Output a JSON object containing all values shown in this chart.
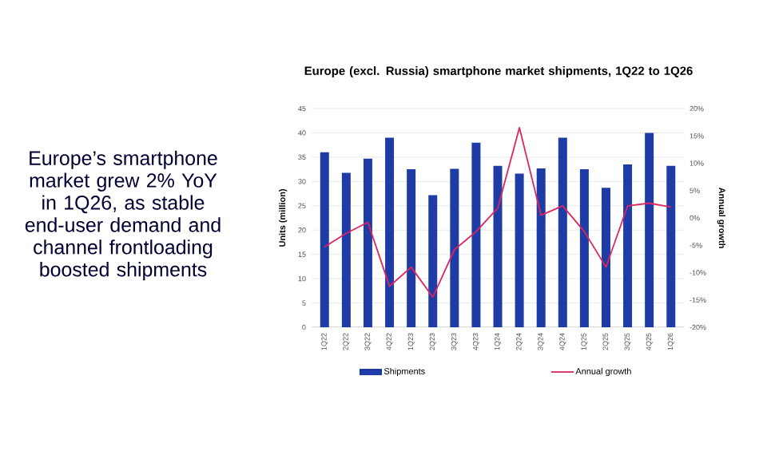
{
  "chart_data": {
    "type": "bar",
    "title": "Europe (excl. Russia) smartphone market shipments, 1Q22 to 1Q26",
    "ylabel": "Units (million)",
    "y2label": "Annual growth",
    "annotations": [
      "Europe’s smartphone market grew 2% YoY in 1Q26, as stable end-user demand and channel frontloading boosted shipments"
    ],
    "categories": [
      "1Q22",
      "2Q22",
      "3Q22",
      "4Q22",
      "1Q23",
      "2Q23",
      "3Q23",
      "4Q23",
      "1Q24",
      "2Q24",
      "3Q24",
      "4Q24",
      "1Q25",
      "2Q25",
      "3Q25",
      "4Q25",
      "1Q26"
    ],
    "series": [
      {
        "name": "Shipments",
        "color": "#1f3ca6",
        "values": [
          36,
          31.8,
          34.7,
          39,
          32.5,
          27.2,
          32.6,
          38,
          33.2,
          31.6,
          32.7,
          39,
          32.5,
          28.7,
          33.5,
          40,
          33.2
        ]
      },
      {
        "name": "Annual growth",
        "type": "line",
        "axis": "y2",
        "color": "#e0245e",
        "values": [
          -5.3,
          -2.8,
          -0.8,
          -12.5,
          -9,
          -14.5,
          -5.8,
          -2.5,
          1.8,
          16.5,
          0.5,
          2.2,
          -2.5,
          -9,
          2.2,
          2.7,
          2.0
        ]
      }
    ],
    "ylim": [
      0,
      45
    ],
    "yticks": [
      0,
      5,
      10,
      15,
      20,
      25,
      30,
      35,
      40,
      45
    ],
    "y2lim": [
      -20,
      20
    ],
    "y2ticks": [
      {
        "value": -20,
        "label": "-20%"
      },
      {
        "value": -15,
        "label": "-15%"
      },
      {
        "value": -10,
        "label": "-10%"
      },
      {
        "value": -5,
        "label": "-5%"
      },
      {
        "value": 0,
        "label": "0%"
      },
      {
        "value": 5,
        "label": "5%"
      },
      {
        "value": 10,
        "label": "10%"
      },
      {
        "value": 15,
        "label": "15%"
      },
      {
        "value": 20,
        "label": "20%"
      }
    ],
    "grid": "y",
    "legend": "bottom"
  }
}
